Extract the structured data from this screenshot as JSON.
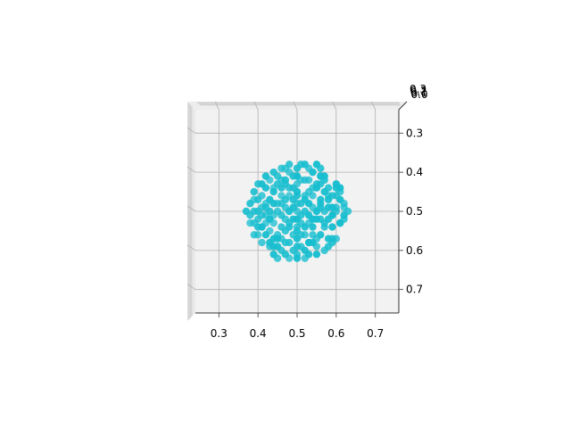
{
  "chart_data": {
    "type": "scatter",
    "projection": "3d",
    "view": "top-down",
    "title": "",
    "xlabel": "",
    "ylabel": "",
    "zlabel": "",
    "grid": true,
    "marker_color": "#17becf",
    "pane_color": "#f2f2f2",
    "xlim": [
      0.24,
      0.76
    ],
    "ylim": [
      0.24,
      0.76
    ],
    "x_ticks": [
      "0.3",
      "0.4",
      "0.5",
      "0.6",
      "0.7"
    ],
    "y_ticks": [
      "0.3",
      "0.4",
      "0.5",
      "0.6",
      "0.7"
    ],
    "z_ticks": [
      "0.3",
      "0.2",
      "0.1",
      "0.0"
    ],
    "series": [
      {
        "values": [
          [
            0.5,
            0.5
          ],
          [
            0.52,
            0.47
          ],
          [
            0.48,
            0.53
          ],
          [
            0.45,
            0.48
          ],
          [
            0.55,
            0.52
          ],
          [
            0.47,
            0.43
          ],
          [
            0.54,
            0.44
          ],
          [
            0.43,
            0.52
          ],
          [
            0.56,
            0.48
          ],
          [
            0.49,
            0.56
          ],
          [
            0.51,
            0.42
          ],
          [
            0.44,
            0.45
          ],
          [
            0.57,
            0.54
          ],
          [
            0.46,
            0.57
          ],
          [
            0.53,
            0.58
          ],
          [
            0.42,
            0.49
          ],
          [
            0.58,
            0.46
          ],
          [
            0.5,
            0.41
          ],
          [
            0.41,
            0.54
          ],
          [
            0.59,
            0.51
          ],
          [
            0.48,
            0.4
          ],
          [
            0.52,
            0.6
          ],
          [
            0.4,
            0.47
          ],
          [
            0.6,
            0.49
          ],
          [
            0.45,
            0.59
          ],
          [
            0.56,
            0.41
          ],
          [
            0.4,
            0.52
          ],
          [
            0.61,
            0.53
          ],
          [
            0.47,
            0.61
          ],
          [
            0.54,
            0.4
          ],
          [
            0.43,
            0.42
          ],
          [
            0.58,
            0.57
          ],
          [
            0.39,
            0.5
          ],
          [
            0.62,
            0.48
          ],
          [
            0.5,
            0.62
          ],
          [
            0.51,
            0.38
          ],
          [
            0.41,
            0.58
          ],
          [
            0.6,
            0.43
          ],
          [
            0.44,
            0.4
          ],
          [
            0.57,
            0.6
          ],
          [
            0.38,
            0.53
          ],
          [
            0.62,
            0.51
          ],
          [
            0.49,
            0.6
          ],
          [
            0.53,
            0.39
          ],
          [
            0.42,
            0.44
          ],
          [
            0.59,
            0.58
          ],
          [
            0.46,
            0.39
          ],
          [
            0.55,
            0.61
          ],
          [
            0.39,
            0.45
          ],
          [
            0.61,
            0.45
          ],
          [
            0.48,
            0.46
          ],
          [
            0.52,
            0.54
          ],
          [
            0.46,
            0.51
          ],
          [
            0.54,
            0.49
          ],
          [
            0.5,
            0.45
          ],
          [
            0.5,
            0.55
          ],
          [
            0.47,
            0.49
          ],
          [
            0.53,
            0.51
          ],
          [
            0.49,
            0.47
          ],
          [
            0.51,
            0.53
          ],
          [
            0.44,
            0.53
          ],
          [
            0.56,
            0.47
          ],
          [
            0.47,
            0.55
          ],
          [
            0.53,
            0.45
          ],
          [
            0.43,
            0.47
          ],
          [
            0.57,
            0.53
          ],
          [
            0.45,
            0.56
          ],
          [
            0.55,
            0.44
          ],
          [
            0.46,
            0.44
          ],
          [
            0.54,
            0.56
          ],
          [
            0.42,
            0.51
          ],
          [
            0.58,
            0.49
          ],
          [
            0.48,
            0.58
          ],
          [
            0.52,
            0.42
          ],
          [
            0.44,
            0.57
          ],
          [
            0.56,
            0.43
          ],
          [
            0.41,
            0.49
          ],
          [
            0.59,
            0.51
          ],
          [
            0.49,
            0.41
          ],
          [
            0.51,
            0.59
          ],
          [
            0.4,
            0.56
          ],
          [
            0.6,
            0.44
          ],
          [
            0.45,
            0.41
          ],
          [
            0.55,
            0.59
          ],
          [
            0.42,
            0.56
          ],
          [
            0.58,
            0.44
          ],
          [
            0.43,
            0.59
          ],
          [
            0.57,
            0.41
          ],
          [
            0.38,
            0.48
          ],
          [
            0.62,
            0.52
          ],
          [
            0.47,
            0.39
          ],
          [
            0.53,
            0.61
          ],
          [
            0.4,
            0.43
          ],
          [
            0.6,
            0.57
          ],
          [
            0.44,
            0.61
          ],
          [
            0.56,
            0.39
          ],
          [
            0.39,
            0.56
          ],
          [
            0.61,
            0.44
          ],
          [
            0.5,
            0.39
          ],
          [
            0.5,
            0.61
          ],
          [
            0.46,
            0.46
          ],
          [
            0.54,
            0.54
          ],
          [
            0.46,
            0.54
          ],
          [
            0.54,
            0.46
          ],
          [
            0.48,
            0.5
          ],
          [
            0.52,
            0.5
          ],
          [
            0.5,
            0.48
          ],
          [
            0.5,
            0.52
          ],
          [
            0.43,
            0.5
          ],
          [
            0.57,
            0.5
          ],
          [
            0.5,
            0.43
          ],
          [
            0.5,
            0.57
          ],
          [
            0.45,
            0.43
          ],
          [
            0.55,
            0.57
          ],
          [
            0.45,
            0.57
          ],
          [
            0.55,
            0.43
          ],
          [
            0.41,
            0.46
          ],
          [
            0.59,
            0.54
          ],
          [
            0.41,
            0.54
          ],
          [
            0.59,
            0.46
          ],
          [
            0.48,
            0.62
          ],
          [
            0.52,
            0.38
          ],
          [
            0.38,
            0.51
          ],
          [
            0.62,
            0.49
          ],
          [
            0.44,
            0.48
          ],
          [
            0.56,
            0.52
          ],
          [
            0.47,
            0.52
          ],
          [
            0.53,
            0.48
          ],
          [
            0.49,
            0.44
          ],
          [
            0.51,
            0.56
          ],
          [
            0.43,
            0.55
          ],
          [
            0.57,
            0.45
          ],
          [
            0.46,
            0.6
          ],
          [
            0.54,
            0.4
          ],
          [
            0.42,
            0.41
          ],
          [
            0.58,
            0.59
          ],
          [
            0.39,
            0.53
          ],
          [
            0.61,
            0.47
          ],
          [
            0.47,
            0.42
          ],
          [
            0.53,
            0.58
          ],
          [
            0.44,
            0.44
          ],
          [
            0.56,
            0.56
          ],
          [
            0.4,
            0.5
          ],
          [
            0.6,
            0.5
          ],
          [
            0.49,
            0.52
          ],
          [
            0.51,
            0.48
          ],
          [
            0.45,
            0.5
          ],
          [
            0.55,
            0.5
          ],
          [
            0.5,
            0.46
          ],
          [
            0.5,
            0.54
          ],
          [
            0.42,
            0.53
          ],
          [
            0.58,
            0.47
          ],
          [
            0.48,
            0.44
          ],
          [
            0.52,
            0.56
          ],
          [
            0.43,
            0.58
          ],
          [
            0.57,
            0.42
          ],
          [
            0.46,
            0.42
          ],
          [
            0.54,
            0.58
          ],
          [
            0.4,
            0.54
          ],
          [
            0.6,
            0.46
          ],
          [
            0.39,
            0.47
          ],
          [
            0.61,
            0.53
          ],
          [
            0.48,
            0.38
          ],
          [
            0.52,
            0.62
          ],
          [
            0.41,
            0.43
          ],
          [
            0.59,
            0.57
          ],
          [
            0.45,
            0.62
          ],
          [
            0.55,
            0.38
          ],
          [
            0.37,
            0.5
          ],
          [
            0.63,
            0.5
          ],
          [
            0.44,
            0.51
          ],
          [
            0.56,
            0.49
          ],
          [
            0.47,
            0.47
          ],
          [
            0.53,
            0.53
          ],
          [
            0.49,
            0.49
          ],
          [
            0.51,
            0.51
          ],
          [
            0.46,
            0.48
          ],
          [
            0.54,
            0.52
          ],
          [
            0.48,
            0.54
          ],
          [
            0.52,
            0.46
          ],
          [
            0.42,
            0.48
          ],
          [
            0.58,
            0.52
          ],
          [
            0.47,
            0.58
          ],
          [
            0.53,
            0.42
          ],
          [
            0.44,
            0.59
          ],
          [
            0.56,
            0.41
          ],
          [
            0.41,
            0.51
          ],
          [
            0.59,
            0.49
          ],
          [
            0.5,
            0.59
          ],
          [
            0.5,
            0.41
          ]
        ]
      }
    ]
  }
}
